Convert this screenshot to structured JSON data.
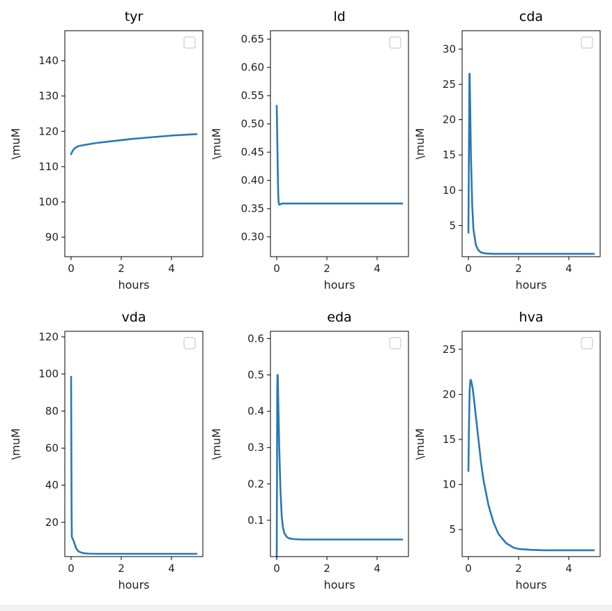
{
  "chart_data": [
    {
      "type": "line",
      "title": "tyr",
      "xlabel": "hours",
      "ylabel": "\\muM",
      "xlim": [
        -0.25,
        5.25
      ],
      "ylim": [
        84.5,
        148.5
      ],
      "xticks": [
        0,
        2,
        4
      ],
      "yticks": [
        90,
        100,
        110,
        120,
        130,
        140
      ],
      "ytick_labels": [
        "90",
        "100",
        "110",
        "120",
        "130",
        "140"
      ],
      "legend": "top-right (empty)",
      "grid": false,
      "series": [
        {
          "x": [
            0,
            0.05,
            0.1,
            0.2,
            0.3,
            0.5,
            0.75,
            1,
            1.5,
            2,
            2.5,
            3,
            3.5,
            4,
            4.5,
            5
          ],
          "y": [
            113.5,
            114.3,
            114.9,
            115.5,
            115.8,
            116.1,
            116.4,
            116.7,
            117.1,
            117.5,
            117.9,
            118.2,
            118.5,
            118.8,
            119.0,
            119.2
          ]
        }
      ]
    },
    {
      "type": "line",
      "title": "ld",
      "xlabel": "hours",
      "ylabel": "\\muM",
      "xlim": [
        -0.25,
        5.25
      ],
      "ylim": [
        0.265,
        0.665
      ],
      "xticks": [
        0,
        2,
        4
      ],
      "yticks": [
        0.3,
        0.35,
        0.4,
        0.45,
        0.5,
        0.55,
        0.6,
        0.65
      ],
      "ytick_labels": [
        "0.30",
        "0.35",
        "0.40",
        "0.45",
        "0.50",
        "0.55",
        "0.60",
        "0.65"
      ],
      "legend": "top-right (empty)",
      "grid": false,
      "series": [
        {
          "x": [
            0,
            0.02,
            0.04,
            0.06,
            0.08,
            0.1,
            0.15,
            0.2,
            0.5,
            1,
            2,
            3,
            4,
            5
          ],
          "y": [
            0.532,
            0.48,
            0.42,
            0.375,
            0.36,
            0.357,
            0.358,
            0.359,
            0.359,
            0.359,
            0.359,
            0.359,
            0.359,
            0.359
          ]
        }
      ]
    },
    {
      "type": "line",
      "title": "cda",
      "xlabel": "hours",
      "ylabel": "\\muM",
      "xlim": [
        -0.25,
        5.25
      ],
      "ylim": [
        0.6,
        32.6
      ],
      "xticks": [
        0,
        2,
        4
      ],
      "yticks": [
        5,
        10,
        15,
        20,
        25,
        30
      ],
      "ytick_labels": [
        "5",
        "10",
        "15",
        "20",
        "25",
        "30"
      ],
      "legend": "top-right (empty)",
      "grid": false,
      "series": [
        {
          "x": [
            0,
            0.02,
            0.04,
            0.05,
            0.07,
            0.1,
            0.15,
            0.2,
            0.3,
            0.4,
            0.5,
            0.7,
            1,
            1.5,
            2,
            3,
            4,
            5
          ],
          "y": [
            4,
            15,
            26.5,
            26.5,
            22,
            15,
            8,
            4.5,
            2.2,
            1.5,
            1.2,
            1.05,
            1.0,
            1.0,
            1.0,
            1.0,
            1.0,
            1.0
          ]
        }
      ]
    },
    {
      "type": "line",
      "title": "vda",
      "xlabel": "hours",
      "ylabel": "\\muM",
      "xlim": [
        -0.25,
        5.25
      ],
      "ylim": [
        1.5,
        123.0
      ],
      "xticks": [
        0,
        2,
        4
      ],
      "yticks": [
        20,
        40,
        60,
        80,
        100,
        120
      ],
      "ytick_labels": [
        "20",
        "40",
        "60",
        "80",
        "100",
        "120"
      ],
      "legend": "top-right (empty)",
      "grid": false,
      "series": [
        {
          "x": [
            0,
            0.01,
            0.02,
            0.03,
            0.05,
            0.1,
            0.15,
            0.2,
            0.3,
            0.5,
            0.7,
            1,
            2,
            3,
            4,
            5
          ],
          "y": [
            98.5,
            60,
            25,
            12,
            11.5,
            10,
            8,
            6,
            4.2,
            3.3,
            3.1,
            3.0,
            3.0,
            3.0,
            3.0,
            3.0
          ]
        }
      ]
    },
    {
      "type": "line",
      "title": "eda",
      "xlabel": "hours",
      "ylabel": "\\muM",
      "xlim": [
        -0.25,
        5.25
      ],
      "ylim": [
        0.0,
        0.62
      ],
      "xticks": [
        0,
        2,
        4
      ],
      "yticks": [
        0.1,
        0.2,
        0.3,
        0.4,
        0.5,
        0.6
      ],
      "ytick_labels": [
        "0.1",
        "0.2",
        "0.3",
        "0.4",
        "0.5",
        "0.6"
      ],
      "legend": "top-right (empty)",
      "grid": false,
      "series": [
        {
          "x": [
            0,
            0.01,
            0.02,
            0.03,
            0.04,
            0.05,
            0.07,
            0.1,
            0.15,
            0.2,
            0.25,
            0.3,
            0.4,
            0.5,
            0.7,
            1,
            2,
            3,
            4,
            5
          ],
          "y": [
            0.0,
            0.2,
            0.45,
            0.5,
            0.5,
            0.47,
            0.4,
            0.3,
            0.18,
            0.11,
            0.08,
            0.065,
            0.054,
            0.05,
            0.048,
            0.047,
            0.047,
            0.047,
            0.047,
            0.047
          ]
        }
      ]
    },
    {
      "type": "line",
      "title": "hva",
      "xlabel": "hours",
      "ylabel": "\\muM",
      "xlim": [
        -0.25,
        5.25
      ],
      "ylim": [
        2.0,
        27.0
      ],
      "xticks": [
        0,
        2,
        4
      ],
      "yticks": [
        5,
        10,
        15,
        20,
        25
      ],
      "ytick_labels": [
        "5",
        "10",
        "15",
        "20",
        "25"
      ],
      "legend": "top-right (empty)",
      "grid": false,
      "series": [
        {
          "x": [
            0,
            0.02,
            0.05,
            0.08,
            0.1,
            0.15,
            0.2,
            0.3,
            0.4,
            0.5,
            0.6,
            0.8,
            1.0,
            1.2,
            1.5,
            1.8,
            2,
            2.5,
            3,
            4,
            5
          ],
          "y": [
            11.5,
            16,
            20.5,
            21.6,
            21.6,
            21,
            20,
            17.5,
            15,
            12.5,
            10.5,
            7.7,
            5.8,
            4.5,
            3.5,
            3.0,
            2.85,
            2.75,
            2.7,
            2.7,
            2.7
          ]
        }
      ]
    }
  ]
}
